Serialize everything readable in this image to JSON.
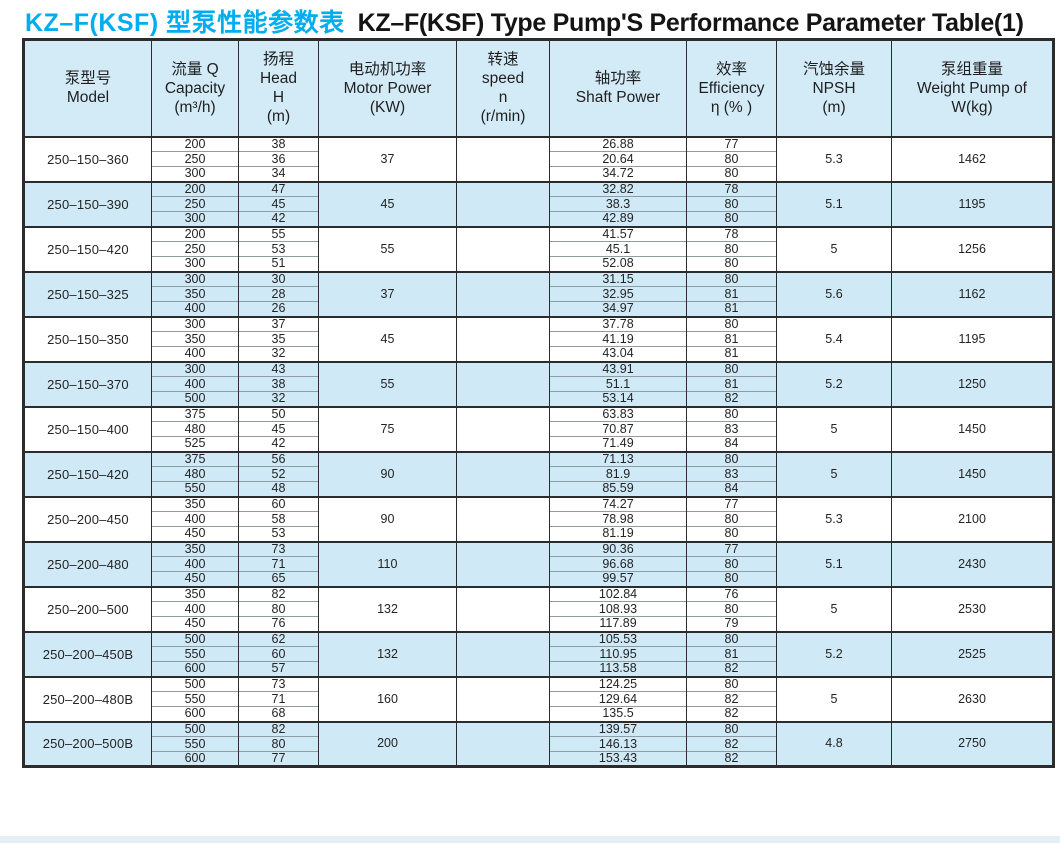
{
  "title": {
    "zh": "KZ–F(KSF) 型泵性能参数表",
    "en": "KZ–F(KSF) Type Pump'S Performance Parameter Table(1)"
  },
  "colors": {
    "title_accent": "#00AEEF",
    "row_blue": "#cfe9f6",
    "header_bg": "#d3eaf7",
    "border_dark": "#2c2c2c"
  },
  "table": {
    "headers": [
      {
        "key": "model",
        "lines": [
          "泵型号",
          "Model"
        ]
      },
      {
        "key": "capacity",
        "lines": [
          "流量 Q",
          "Capacity",
          "(m³/h)"
        ]
      },
      {
        "key": "head",
        "lines": [
          "扬程",
          "Head",
          "H",
          "(m)"
        ]
      },
      {
        "key": "motor_power",
        "lines": [
          "电动机功率",
          "Motor Power",
          "(KW)"
        ]
      },
      {
        "key": "speed",
        "lines": [
          "转速",
          "speed",
          "n",
          "(r/min)"
        ]
      },
      {
        "key": "shaft_power",
        "lines": [
          "轴功率",
          "Shaft Power"
        ]
      },
      {
        "key": "efficiency",
        "lines": [
          "效率",
          "Efficiency",
          "η (% )"
        ]
      },
      {
        "key": "npsh",
        "lines": [
          "汽蚀余量",
          "NPSH",
          "(m)"
        ]
      },
      {
        "key": "weight",
        "lines": [
          "泵组重量",
          "Weight Pump of",
          "W(kg)"
        ]
      }
    ],
    "groups": [
      {
        "model": "250–150–360",
        "shade": "white",
        "motor_power": "37",
        "speed": "",
        "npsh": "5.3",
        "weight": "1462",
        "rows": [
          {
            "capacity": "200",
            "head": "38",
            "shaft": "26.88",
            "eff": "77"
          },
          {
            "capacity": "250",
            "head": "36",
            "shaft": "20.64",
            "eff": "80"
          },
          {
            "capacity": "300",
            "head": "34",
            "shaft": "34.72",
            "eff": "80"
          }
        ]
      },
      {
        "model": "250–150–390",
        "shade": "blue",
        "motor_power": "45",
        "speed": "",
        "npsh": "5.1",
        "weight": "1195",
        "rows": [
          {
            "capacity": "200",
            "head": "47",
            "shaft": "32.82",
            "eff": "78"
          },
          {
            "capacity": "250",
            "head": "45",
            "shaft": "38.3",
            "eff": "80"
          },
          {
            "capacity": "300",
            "head": "42",
            "shaft": "42.89",
            "eff": "80"
          }
        ]
      },
      {
        "model": "250–150–420",
        "shade": "white",
        "motor_power": "55",
        "speed": "",
        "npsh": "5",
        "weight": "1256",
        "rows": [
          {
            "capacity": "200",
            "head": "55",
            "shaft": "41.57",
            "eff": "78"
          },
          {
            "capacity": "250",
            "head": "53",
            "shaft": "45.1",
            "eff": "80"
          },
          {
            "capacity": "300",
            "head": "51",
            "shaft": "52.08",
            "eff": "80"
          }
        ]
      },
      {
        "model": "250–150–325",
        "shade": "blue",
        "motor_power": "37",
        "speed": "",
        "npsh": "5.6",
        "weight": "1162",
        "rows": [
          {
            "capacity": "300",
            "head": "30",
            "shaft": "31.15",
            "eff": "80"
          },
          {
            "capacity": "350",
            "head": "28",
            "shaft": "32.95",
            "eff": "81"
          },
          {
            "capacity": "400",
            "head": "26",
            "shaft": "34.97",
            "eff": "81"
          }
        ]
      },
      {
        "model": "250–150–350",
        "shade": "white",
        "motor_power": "45",
        "speed": "",
        "npsh": "5.4",
        "weight": "1195",
        "rows": [
          {
            "capacity": "300",
            "head": "37",
            "shaft": "37.78",
            "eff": "80"
          },
          {
            "capacity": "350",
            "head": "35",
            "shaft": "41.19",
            "eff": "81"
          },
          {
            "capacity": "400",
            "head": "32",
            "shaft": "43.04",
            "eff": "81"
          }
        ]
      },
      {
        "model": "250–150–370",
        "shade": "blue",
        "motor_power": "55",
        "speed": "",
        "npsh": "5.2",
        "weight": "1250",
        "rows": [
          {
            "capacity": "300",
            "head": "43",
            "shaft": "43.91",
            "eff": "80"
          },
          {
            "capacity": "400",
            "head": "38",
            "shaft": "51.1",
            "eff": "81"
          },
          {
            "capacity": "500",
            "head": "32",
            "shaft": "53.14",
            "eff": "82"
          }
        ]
      },
      {
        "model": "250–150–400",
        "shade": "white",
        "motor_power": "75",
        "speed": "",
        "npsh": "5",
        "weight": "1450",
        "rows": [
          {
            "capacity": "375",
            "head": "50",
            "shaft": "63.83",
            "eff": "80"
          },
          {
            "capacity": "480",
            "head": "45",
            "shaft": "70.87",
            "eff": "83"
          },
          {
            "capacity": "525",
            "head": "42",
            "shaft": "71.49",
            "eff": "84"
          }
        ]
      },
      {
        "model": "250–150–420",
        "shade": "blue",
        "motor_power": "90",
        "speed": "",
        "npsh": "5",
        "weight": "1450",
        "rows": [
          {
            "capacity": "375",
            "head": "56",
            "shaft": "71.13",
            "eff": "80"
          },
          {
            "capacity": "480",
            "head": "52",
            "shaft": "81.9",
            "eff": "83"
          },
          {
            "capacity": "550",
            "head": "48",
            "shaft": "85.59",
            "eff": "84"
          }
        ]
      },
      {
        "model": "250–200–450",
        "shade": "white",
        "motor_power": "90",
        "speed": "",
        "npsh": "5.3",
        "weight": "2100",
        "rows": [
          {
            "capacity": "350",
            "head": "60",
            "shaft": "74.27",
            "eff": "77"
          },
          {
            "capacity": "400",
            "head": "58",
            "shaft": "78.98",
            "eff": "80"
          },
          {
            "capacity": "450",
            "head": "53",
            "shaft": "81.19",
            "eff": "80"
          }
        ]
      },
      {
        "model": "250–200–480",
        "shade": "blue",
        "motor_power": "110",
        "speed": "",
        "npsh": "5.1",
        "weight": "2430",
        "rows": [
          {
            "capacity": "350",
            "head": "73",
            "shaft": "90.36",
            "eff": "77"
          },
          {
            "capacity": "400",
            "head": "71",
            "shaft": "96.68",
            "eff": "80"
          },
          {
            "capacity": "450",
            "head": "65",
            "shaft": "99.57",
            "eff": "80"
          }
        ]
      },
      {
        "model": "250–200–500",
        "shade": "white",
        "motor_power": "132",
        "speed": "",
        "npsh": "5",
        "weight": "2530",
        "rows": [
          {
            "capacity": "350",
            "head": "82",
            "shaft": "102.84",
            "eff": "76"
          },
          {
            "capacity": "400",
            "head": "80",
            "shaft": "108.93",
            "eff": "80"
          },
          {
            "capacity": "450",
            "head": "76",
            "shaft": "117.89",
            "eff": "79"
          }
        ]
      },
      {
        "model": "250–200–450B",
        "shade": "blue",
        "motor_power": "132",
        "speed": "",
        "npsh": "5.2",
        "weight": "2525",
        "rows": [
          {
            "capacity": "500",
            "head": "62",
            "shaft": "105.53",
            "eff": "80"
          },
          {
            "capacity": "550",
            "head": "60",
            "shaft": "110.95",
            "eff": "81"
          },
          {
            "capacity": "600",
            "head": "57",
            "shaft": "113.58",
            "eff": "82"
          }
        ]
      },
      {
        "model": "250–200–480B",
        "shade": "white",
        "motor_power": "160",
        "speed": "",
        "npsh": "5",
        "weight": "2630",
        "rows": [
          {
            "capacity": "500",
            "head": "73",
            "shaft": "124.25",
            "eff": "80"
          },
          {
            "capacity": "550",
            "head": "71",
            "shaft": "129.64",
            "eff": "82"
          },
          {
            "capacity": "600",
            "head": "68",
            "shaft": "135.5",
            "eff": "82"
          }
        ]
      },
      {
        "model": "250–200–500B",
        "shade": "blue",
        "motor_power": "200",
        "speed": "",
        "npsh": "4.8",
        "weight": "2750",
        "rows": [
          {
            "capacity": "500",
            "head": "82",
            "shaft": "139.57",
            "eff": "80"
          },
          {
            "capacity": "550",
            "head": "80",
            "shaft": "146.13",
            "eff": "82"
          },
          {
            "capacity": "600",
            "head": "77",
            "shaft": "153.43",
            "eff": "82"
          }
        ]
      }
    ]
  }
}
